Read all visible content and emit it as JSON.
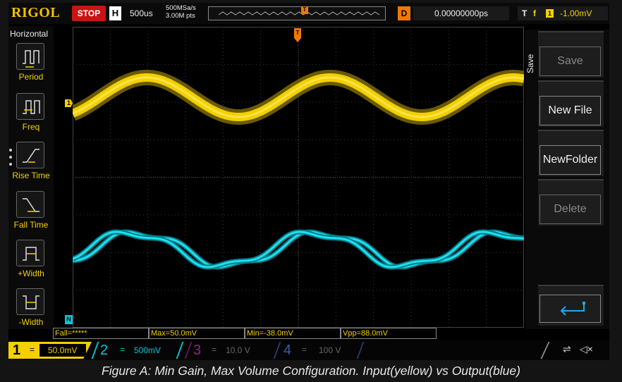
{
  "topbar": {
    "brand": "RIGOL",
    "run_state": "STOP",
    "h_label": "H",
    "timebase": "500us",
    "sample_rate": "500MSa/s",
    "memory_depth": "3.00M pts",
    "trigger_marker": "T",
    "d_label": "D",
    "delay": "0.00000000ps",
    "trigger_type": "T",
    "trigger_edge": "f",
    "trigger_source": "1",
    "trigger_level": "-1.00mV"
  },
  "left_panel": {
    "title": "Horizontal",
    "items": [
      {
        "label": "Period",
        "icon": "period-icon"
      },
      {
        "label": "Freq",
        "icon": "frequency-icon"
      },
      {
        "label": "Rise Time",
        "icon": "rise-time-icon"
      },
      {
        "label": "Fall Time",
        "icon": "fall-time-icon"
      },
      {
        "label": "+Width",
        "icon": "positive-width-icon"
      },
      {
        "label": "-Width",
        "icon": "negative-width-icon"
      }
    ]
  },
  "right_panel": {
    "title": "Save",
    "buttons": [
      {
        "label": "Save",
        "enabled": false
      },
      {
        "label": "New File",
        "enabled": true
      },
      {
        "label": "NewFolder",
        "enabled": true
      },
      {
        "label": "Delete",
        "enabled": false
      },
      {
        "label": "",
        "icon": "enter-icon",
        "enabled": true
      }
    ]
  },
  "markers": {
    "ch1": "1",
    "ch2": "N",
    "trigger_level": "T",
    "trigger_position": "T"
  },
  "measurements": [
    {
      "label": "Fall=*****"
    },
    {
      "label": "Max=50.0mV"
    },
    {
      "label": "Min=-38.0mV"
    },
    {
      "label": "Vpp=88.0mV"
    }
  ],
  "channels": [
    {
      "num": "1",
      "scale": "50.0mV",
      "active": true,
      "color": "#f3d000"
    },
    {
      "num": "2",
      "scale": "500mV",
      "active": true,
      "color": "#00c8d8"
    },
    {
      "num": "3",
      "scale": "10.0 V",
      "active": false,
      "color": "#8a2a7a"
    },
    {
      "num": "4",
      "scale": "100 V",
      "active": false,
      "color": "#2a4a9a"
    }
  ],
  "colors": {
    "ch1": "#f3d000",
    "ch2": "#00d8e8",
    "trigger": "#f07800",
    "stop": "#c81414",
    "brand": "#f3c000"
  },
  "caption": "Figure A: Min Gain, Max Volume Configuration. Input(yellow) vs Output(blue)"
}
